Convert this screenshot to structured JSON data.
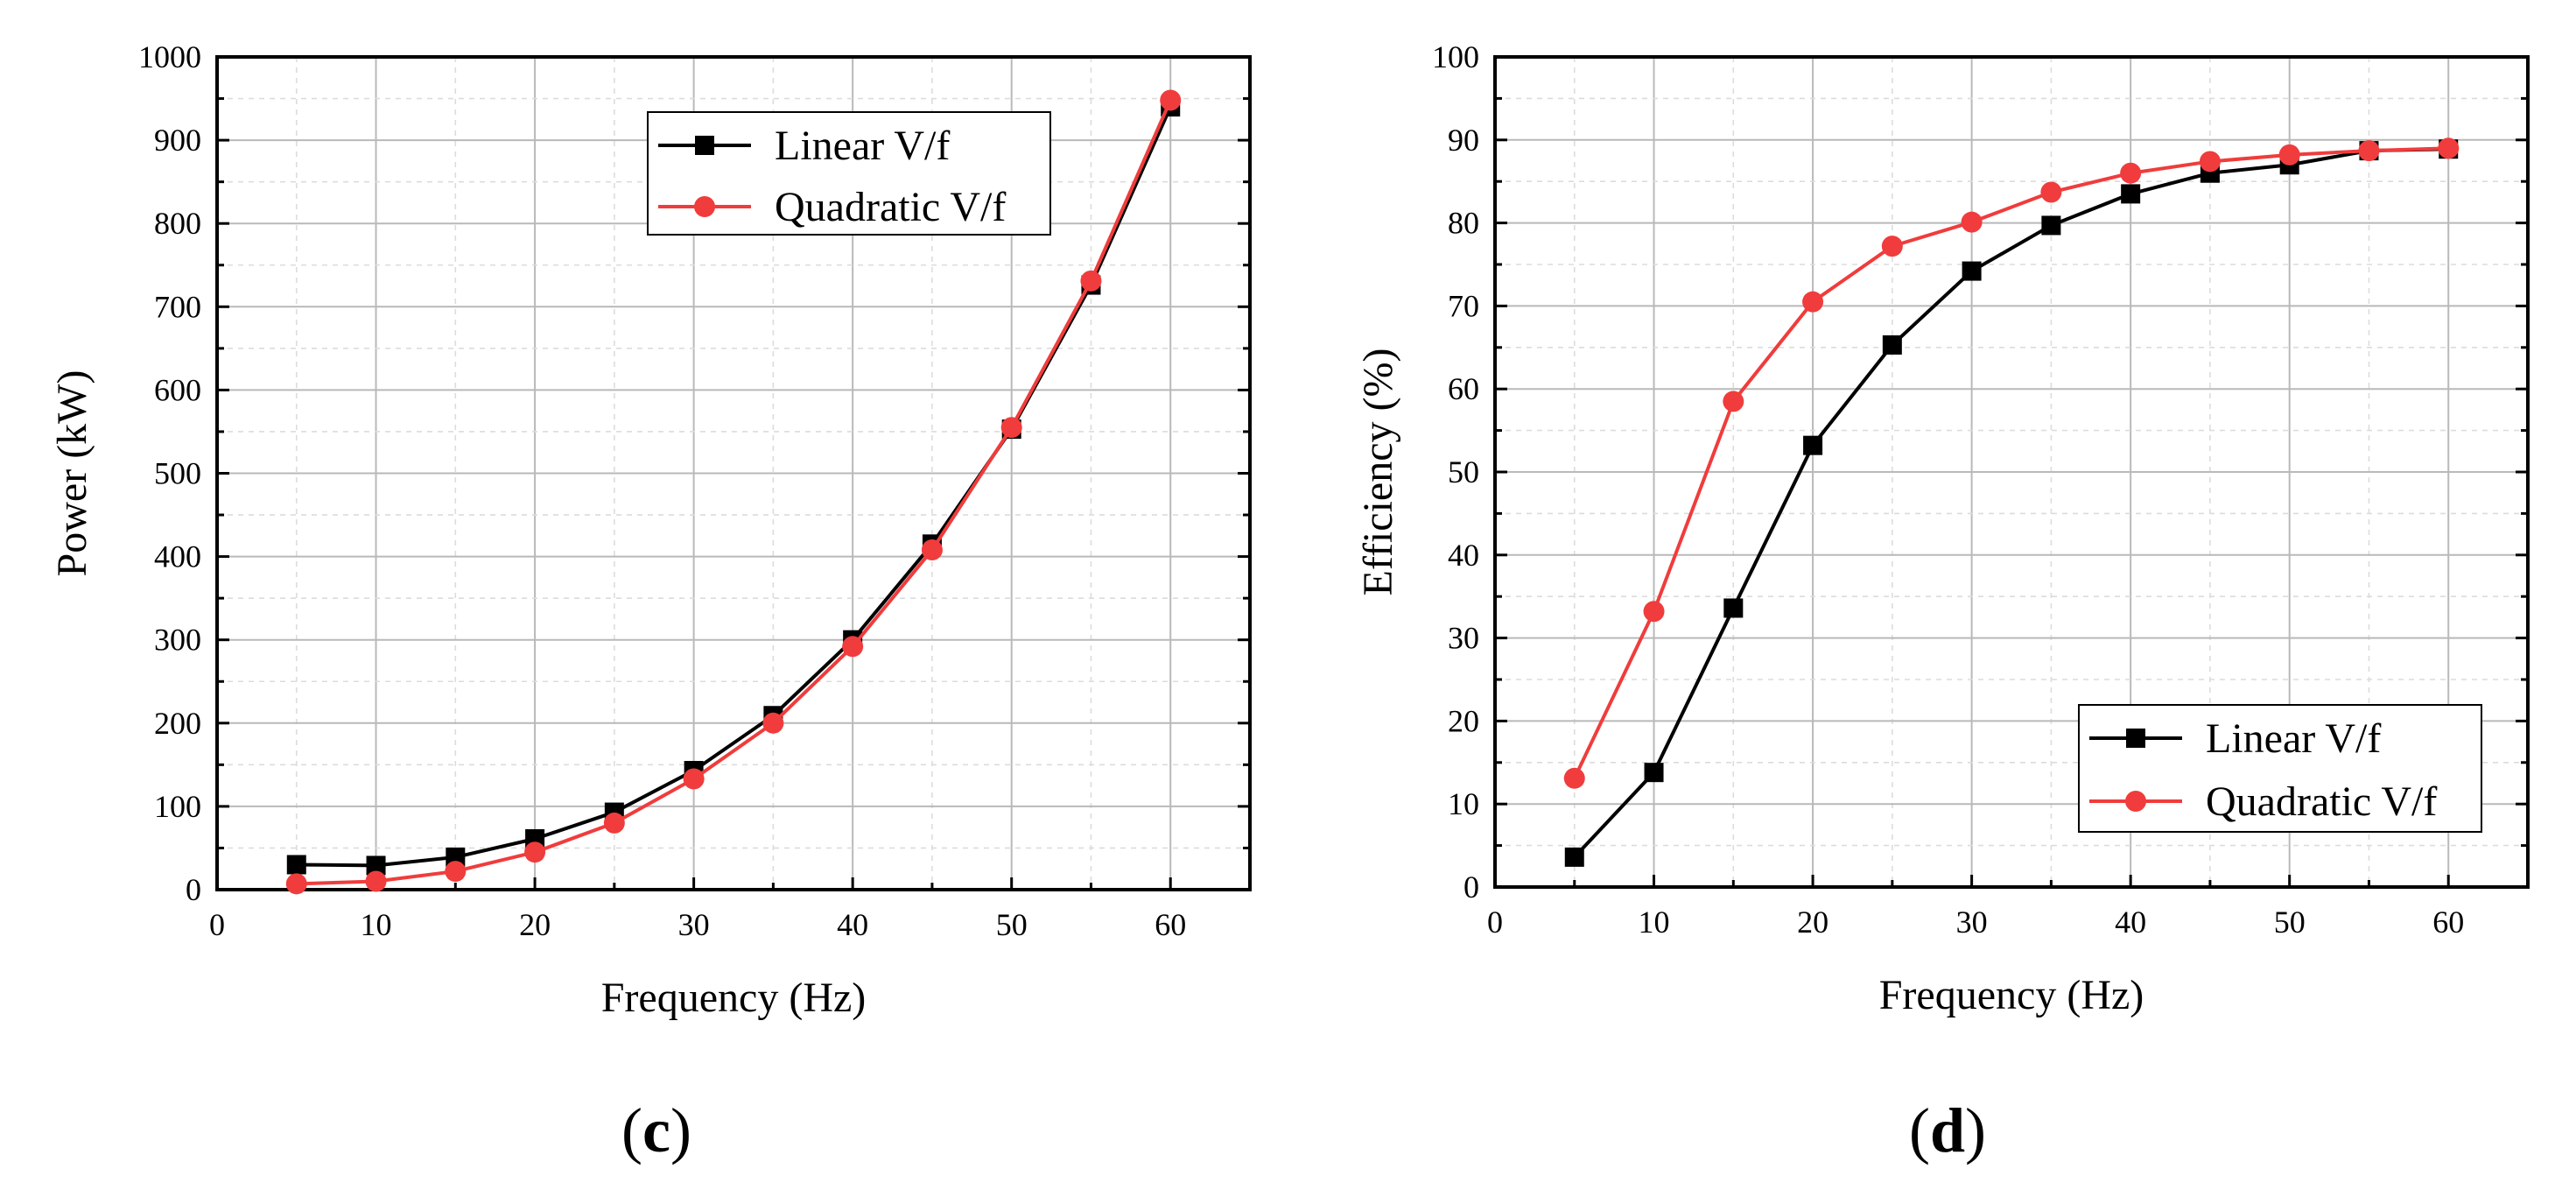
{
  "chart_data": [
    {
      "type": "line",
      "panel_label": {
        "open": "(",
        "letter": "c",
        "close": ")"
      },
      "title": "",
      "xlabel": "Frequency (Hz)",
      "ylabel": "Power (kW)",
      "xlim": [
        0,
        65
      ],
      "ylim": [
        0,
        1000
      ],
      "xticks": [
        0,
        10,
        20,
        30,
        40,
        50,
        60
      ],
      "yticks": [
        0,
        100,
        200,
        300,
        400,
        500,
        600,
        700,
        800,
        900,
        1000
      ],
      "grid": true,
      "legend_position": "top-center",
      "x": [
        5,
        10,
        15,
        20,
        25,
        30,
        35,
        40,
        45,
        50,
        55,
        60
      ],
      "series": [
        {
          "name": "Linear V/f",
          "color": "#000000",
          "marker": "square",
          "values": [
            30,
            29,
            39,
            61,
            93,
            143,
            209,
            300,
            415,
            553,
            726,
            940
          ]
        },
        {
          "name": "Quadratic V/f",
          "color": "#f03c3c",
          "marker": "circle",
          "values": [
            7,
            10,
            22,
            45,
            80,
            133,
            200,
            292,
            408,
            555,
            731,
            948
          ]
        }
      ]
    },
    {
      "type": "line",
      "panel_label": {
        "open": "(",
        "letter": "d",
        "close": ")"
      },
      "title": "",
      "xlabel": "Frequency (Hz)",
      "ylabel": "Efficiency (%)",
      "xlim": [
        0,
        65
      ],
      "ylim": [
        0,
        100
      ],
      "xticks": [
        0,
        10,
        20,
        30,
        40,
        50,
        60
      ],
      "yticks": [
        0,
        10,
        20,
        30,
        40,
        50,
        60,
        70,
        80,
        90,
        100
      ],
      "grid": true,
      "legend_position": "bottom-right",
      "x": [
        5,
        10,
        15,
        20,
        25,
        30,
        35,
        40,
        45,
        50,
        55,
        60
      ],
      "series": [
        {
          "name": "Linear V/f",
          "color": "#000000",
          "marker": "square",
          "values": [
            3.6,
            13.8,
            33.6,
            53.2,
            65.3,
            74.2,
            79.7,
            83.5,
            86.0,
            87.0,
            88.7,
            88.9
          ]
        },
        {
          "name": "Quadratic V/f",
          "color": "#f03c3c",
          "marker": "circle",
          "values": [
            13.1,
            33.2,
            58.5,
            70.5,
            77.2,
            80.1,
            83.7,
            86.0,
            87.4,
            88.2,
            88.7,
            89.0
          ]
        }
      ]
    }
  ]
}
